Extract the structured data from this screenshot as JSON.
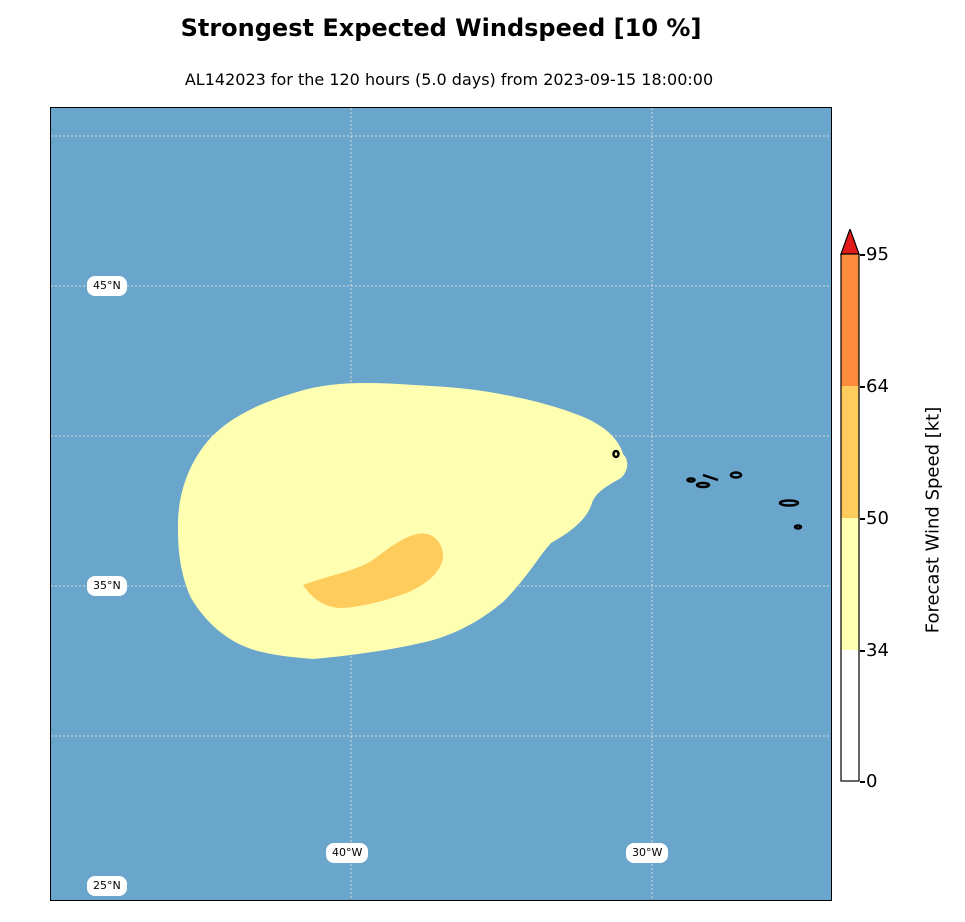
{
  "title": "Strongest Expected Windspeed [10 %]",
  "subtitle": "AL142023 for the 120 hours (5.0 days) from 2023-09-15 18:00:00",
  "map": {
    "ocean_color": "#6aa6cc",
    "gridline_color": "#d8d8d8",
    "lat_labels": [
      "45°N",
      "35°N",
      "25°N"
    ],
    "lon_labels": [
      "40°W",
      "30°W"
    ],
    "wind_field_levels": [
      {
        "threshold_kt": 34,
        "color": "#ffffb2"
      },
      {
        "threshold_kt": 50,
        "color": "#fecc5c"
      }
    ],
    "islands": "azores-islands"
  },
  "colorbar": {
    "label": "Forecast Wind Speed [kt]",
    "ticks": [
      "0",
      "34",
      "50",
      "64",
      "95"
    ],
    "bands": [
      {
        "from": 0,
        "to": 34,
        "color": "#ffffff"
      },
      {
        "from": 34,
        "to": 50,
        "color": "#ffffb2"
      },
      {
        "from": 50,
        "to": 64,
        "color": "#fecc5c"
      },
      {
        "from": 64,
        "to": 95,
        "color": "#fd8d3c"
      },
      {
        "from": 95,
        "to": "max",
        "color": "#e31a1c"
      }
    ]
  }
}
